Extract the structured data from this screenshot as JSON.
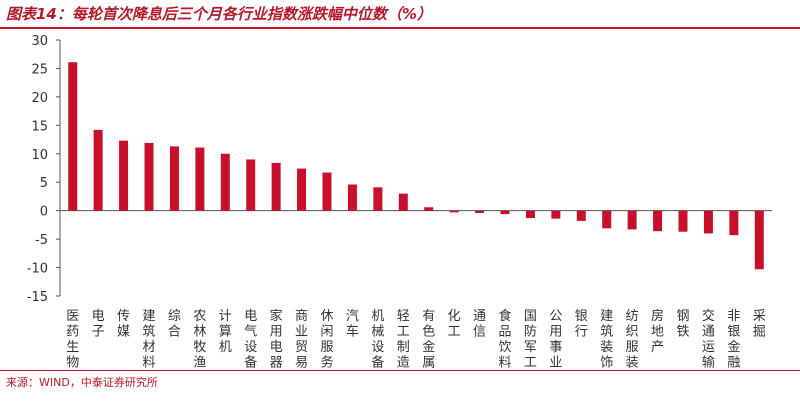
{
  "header": {
    "title": "图表14：每轮首次降息后三个月各行业指数涨跌幅中位数（%）"
  },
  "footer": {
    "source": "来源：WIND，中泰证券研究所"
  },
  "colors": {
    "accent": "#b5192a",
    "bar": "#c8102e"
  },
  "chart_data": {
    "type": "bar",
    "title": "图表14：每轮首次降息后三个月各行业指数涨跌幅中位数（%）",
    "xlabel": "",
    "ylabel": "",
    "ylim": [
      -15,
      30
    ],
    "yticks": [
      -15,
      -10,
      -5,
      0,
      5,
      10,
      15,
      20,
      25,
      30
    ],
    "grid": false,
    "legend": "none",
    "categories": [
      "医药生物",
      "电子",
      "传媒",
      "建筑材料",
      "综合",
      "农林牧渔",
      "计算机",
      "电气设备",
      "家用电器",
      "商业贸易",
      "休闲服务",
      "汽车",
      "机械设备",
      "轻工制造",
      "有色金属",
      "化工",
      "通信",
      "食品饮料",
      "国防军工",
      "公用事业",
      "银行",
      "建筑装饰",
      "纺织服装",
      "房地产",
      "钢铁",
      "交通运输",
      "非银金融",
      "采掘"
    ],
    "values": [
      26.1,
      14.2,
      12.3,
      11.9,
      11.3,
      11.1,
      10.0,
      9.0,
      8.4,
      7.4,
      6.7,
      4.6,
      4.1,
      3.0,
      0.6,
      -0.3,
      -0.4,
      -0.6,
      -1.3,
      -1.4,
      -1.8,
      -3.1,
      -3.3,
      -3.6,
      -3.7,
      -4.0,
      -4.3,
      -10.3
    ]
  }
}
